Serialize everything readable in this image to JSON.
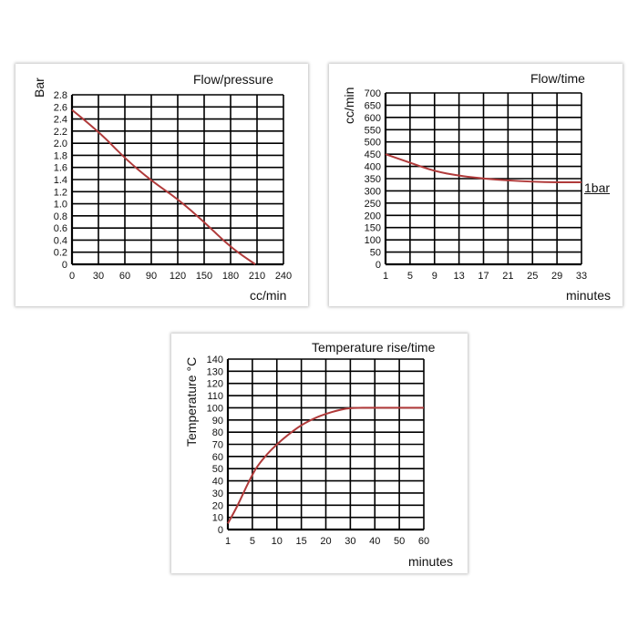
{
  "chart_data": [
    {
      "id": "flow-pressure",
      "type": "line",
      "title": "Flow/pressure",
      "xlabel": "cc/min",
      "ylabel": "Bar",
      "xlim": [
        0,
        240
      ],
      "ylim": [
        0,
        2.8
      ],
      "x_ticks": [
        "0",
        "30",
        "60",
        "90",
        "120",
        "150",
        "180",
        "210",
        "240"
      ],
      "y_ticks": [
        "0",
        "0.2",
        "0.4",
        "0.6",
        "0.8",
        "1.0",
        "1.2",
        "1.4",
        "1.6",
        "1.8",
        "2.0",
        "2.2",
        "2.4",
        "2.6",
        "2.8"
      ],
      "grid": true,
      "line_color": "#b03a3a",
      "series": [
        {
          "x": [
            0,
            30,
            60,
            90,
            120,
            150,
            180,
            208
          ],
          "y": [
            2.55,
            2.2,
            1.75,
            1.38,
            1.08,
            0.7,
            0.28,
            0
          ]
        }
      ]
    },
    {
      "id": "flow-time",
      "type": "line",
      "title": "Flow/time",
      "xlabel": "minutes",
      "ylabel": "cc/min",
      "xlim": [
        1,
        33
      ],
      "ylim": [
        0,
        700
      ],
      "x_ticks": [
        "1",
        "5",
        "9",
        "13",
        "17",
        "21",
        "25",
        "29",
        "33"
      ],
      "y_ticks": [
        "0",
        "50",
        "100",
        "150",
        "200",
        "250",
        "300",
        "350",
        "400",
        "450",
        "500",
        "550",
        "600",
        "650",
        "700"
      ],
      "grid": true,
      "line_color": "#b03a3a",
      "series": [
        {
          "name": "1bar",
          "x": [
            1,
            5,
            9,
            13,
            17,
            21,
            25,
            29,
            33
          ],
          "y": [
            450,
            415,
            380,
            362,
            350,
            343,
            337,
            335,
            335
          ]
        }
      ]
    },
    {
      "id": "temperature",
      "type": "line",
      "title": "Temperature rise/time",
      "xlabel": "minutes",
      "ylabel": "Temperature °C",
      "x_ticks": [
        "1",
        "5",
        "10",
        "15",
        "20",
        "30",
        "40",
        "50",
        "60"
      ],
      "ylim": [
        0,
        140
      ],
      "y_ticks": [
        "0",
        "10",
        "20",
        "30",
        "40",
        "50",
        "60",
        "70",
        "80",
        "90",
        "100",
        "110",
        "120",
        "130",
        "140"
      ],
      "grid": true,
      "line_color": "#b03a3a",
      "series": [
        {
          "x": [
            1,
            2,
            3,
            4,
            5,
            6,
            8,
            10,
            12,
            15,
            18,
            20,
            25,
            30,
            40,
            50,
            60
          ],
          "y": [
            5,
            14,
            24,
            35,
            45,
            52,
            62,
            70,
            77,
            86,
            92,
            95,
            98,
            100,
            100,
            100,
            100
          ]
        }
      ]
    }
  ]
}
